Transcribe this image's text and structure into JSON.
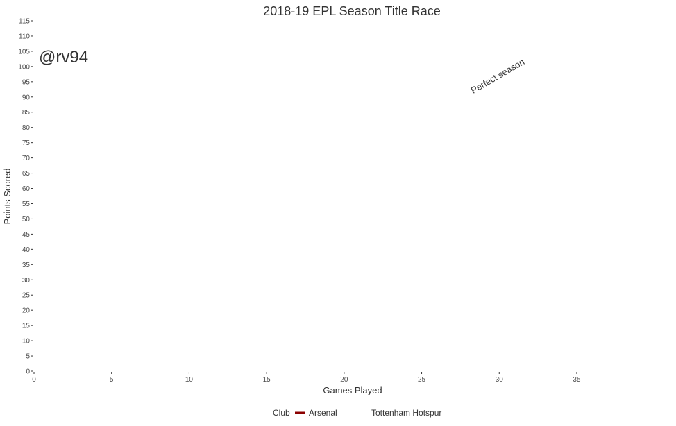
{
  "chart_data": {
    "type": "line",
    "title": "2018-19 EPL Season Title Race",
    "xlabel": "Games Played",
    "ylabel": "Points Scored",
    "xlim": [
      0,
      38
    ],
    "ylim": [
      0,
      115
    ],
    "x_ticks": [
      0,
      5,
      10,
      15,
      20,
      25,
      30,
      35
    ],
    "y_ticks": [
      0,
      5,
      10,
      15,
      20,
      25,
      30,
      35,
      40,
      45,
      50,
      55,
      60,
      65,
      70,
      75,
      80,
      85,
      90,
      95,
      100,
      105,
      110,
      115
    ],
    "grid": false,
    "legend_position": "bottom",
    "legend_title": "Club",
    "series": [
      {
        "name": "Arsenal",
        "color": "#8b0000",
        "x": [],
        "y": []
      },
      {
        "name": "Tottenham Hotspur",
        "color": "#ffffff",
        "x": [],
        "y": []
      }
    ],
    "annotations": [
      {
        "text": "Perfect season",
        "x": 30,
        "y": 96,
        "angle": -30
      }
    ],
    "watermark": "@rv94"
  }
}
